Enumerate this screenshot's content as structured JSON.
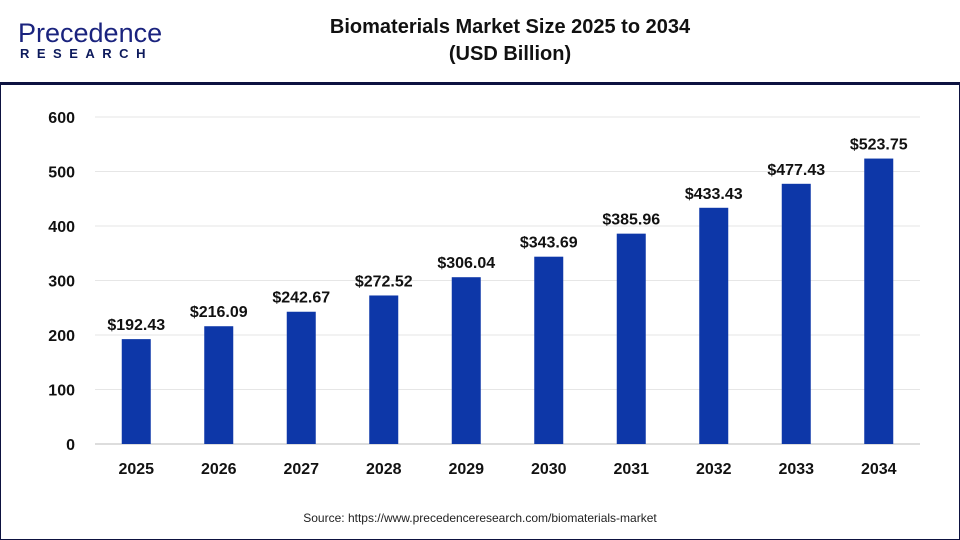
{
  "logo": {
    "line1": "Precedence",
    "line2": "RESEARCH"
  },
  "title_line1": "Biomaterials Market  Size 2025 to 2034",
  "title_line2": "(USD Billion)",
  "source": "Source: https://www.precedenceresearch.com/biomaterials-market",
  "chart_data": {
    "type": "bar",
    "title": "Biomaterials Market  Size 2025 to 2034 (USD Billion)",
    "categories": [
      "2025",
      "2026",
      "2027",
      "2028",
      "2029",
      "2030",
      "2031",
      "2032",
      "2033",
      "2034"
    ],
    "values": [
      192.43,
      216.09,
      242.67,
      272.52,
      306.04,
      343.69,
      385.96,
      433.43,
      477.43,
      523.75
    ],
    "data_labels": [
      "$192.43",
      "$216.09",
      "$242.67",
      "$272.52",
      "$306.04",
      "$343.69",
      "$385.96",
      "$433.43",
      "$477.43",
      "$523.75"
    ],
    "yticks": [
      0,
      100,
      200,
      300,
      400,
      500,
      600
    ],
    "ylim": [
      0,
      600
    ],
    "grid": true,
    "bar_color": "#0d37a8"
  }
}
